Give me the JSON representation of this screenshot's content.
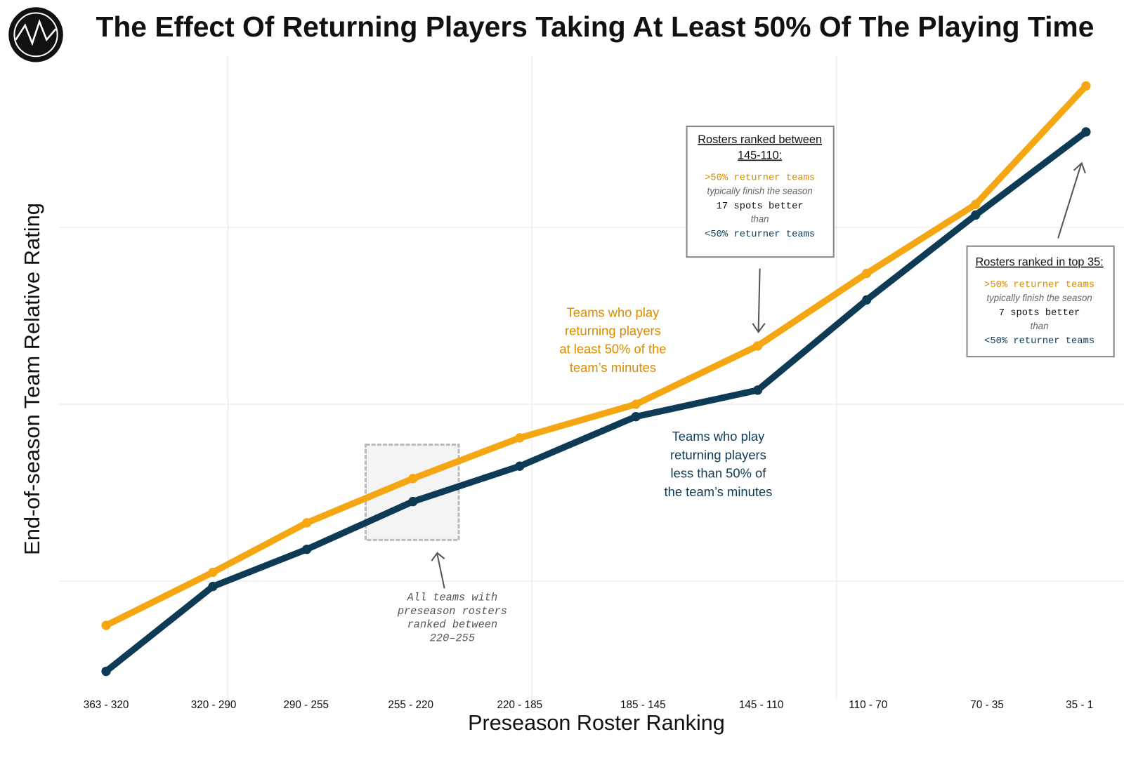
{
  "chart_data": {
    "type": "line",
    "title": "The Effect Of Returning Players Taking At Least 50% Of The Playing Time",
    "x_label": "Preseason Roster Ranking",
    "y_label": "End-of-season Team Relative Rating",
    "categories": [
      "363 - 320",
      "320 - 290",
      "290 - 255",
      "255 - 220",
      "220 - 185",
      "185 - 145",
      "145 - 110",
      "110 - 70",
      "70 - 35",
      "35 - 1"
    ],
    "series": [
      {
        "color": "#f5a713",
        "values": [
          0.75,
          1.05,
          1.33,
          1.58,
          1.81,
          2.0,
          2.33,
          2.74,
          3.13,
          3.8
        ]
      },
      {
        "color": "#0d3b56",
        "values": [
          0.49,
          0.97,
          1.18,
          1.45,
          1.65,
          1.93,
          2.08,
          2.59,
          3.07,
          3.54
        ]
      }
    ],
    "ylim": [
      0.3,
      4
    ],
    "ygrid": [
      1,
      2,
      3
    ],
    "grid": true,
    "series_labels": [
      {
        "lines": [
          "Teams who play",
          "returning players",
          "at least 50% of the",
          "team’s minutes"
        ],
        "color": "#d98c00"
      },
      {
        "lines": [
          "Teams who play",
          "returning players",
          "less than 50% of",
          "the team’s minutes"
        ],
        "color": "#0d3b56"
      }
    ],
    "callouts": [
      {
        "title": [
          "Rosters ranked between",
          "145-110:"
        ],
        "lines": [
          ">50% returner teams",
          "typically finish the season",
          "17 spots better",
          "than",
          "<50% returner teams"
        ]
      },
      {
        "title": [
          "Rosters ranked in top 35:"
        ],
        "lines": [
          ">50% returner teams",
          "typically finish the season",
          "7 spots better",
          "than",
          "<50% returner teams"
        ]
      }
    ],
    "highlight_note": [
      "All teams with",
      "preseason rosters",
      "ranked between",
      "220–255"
    ]
  }
}
